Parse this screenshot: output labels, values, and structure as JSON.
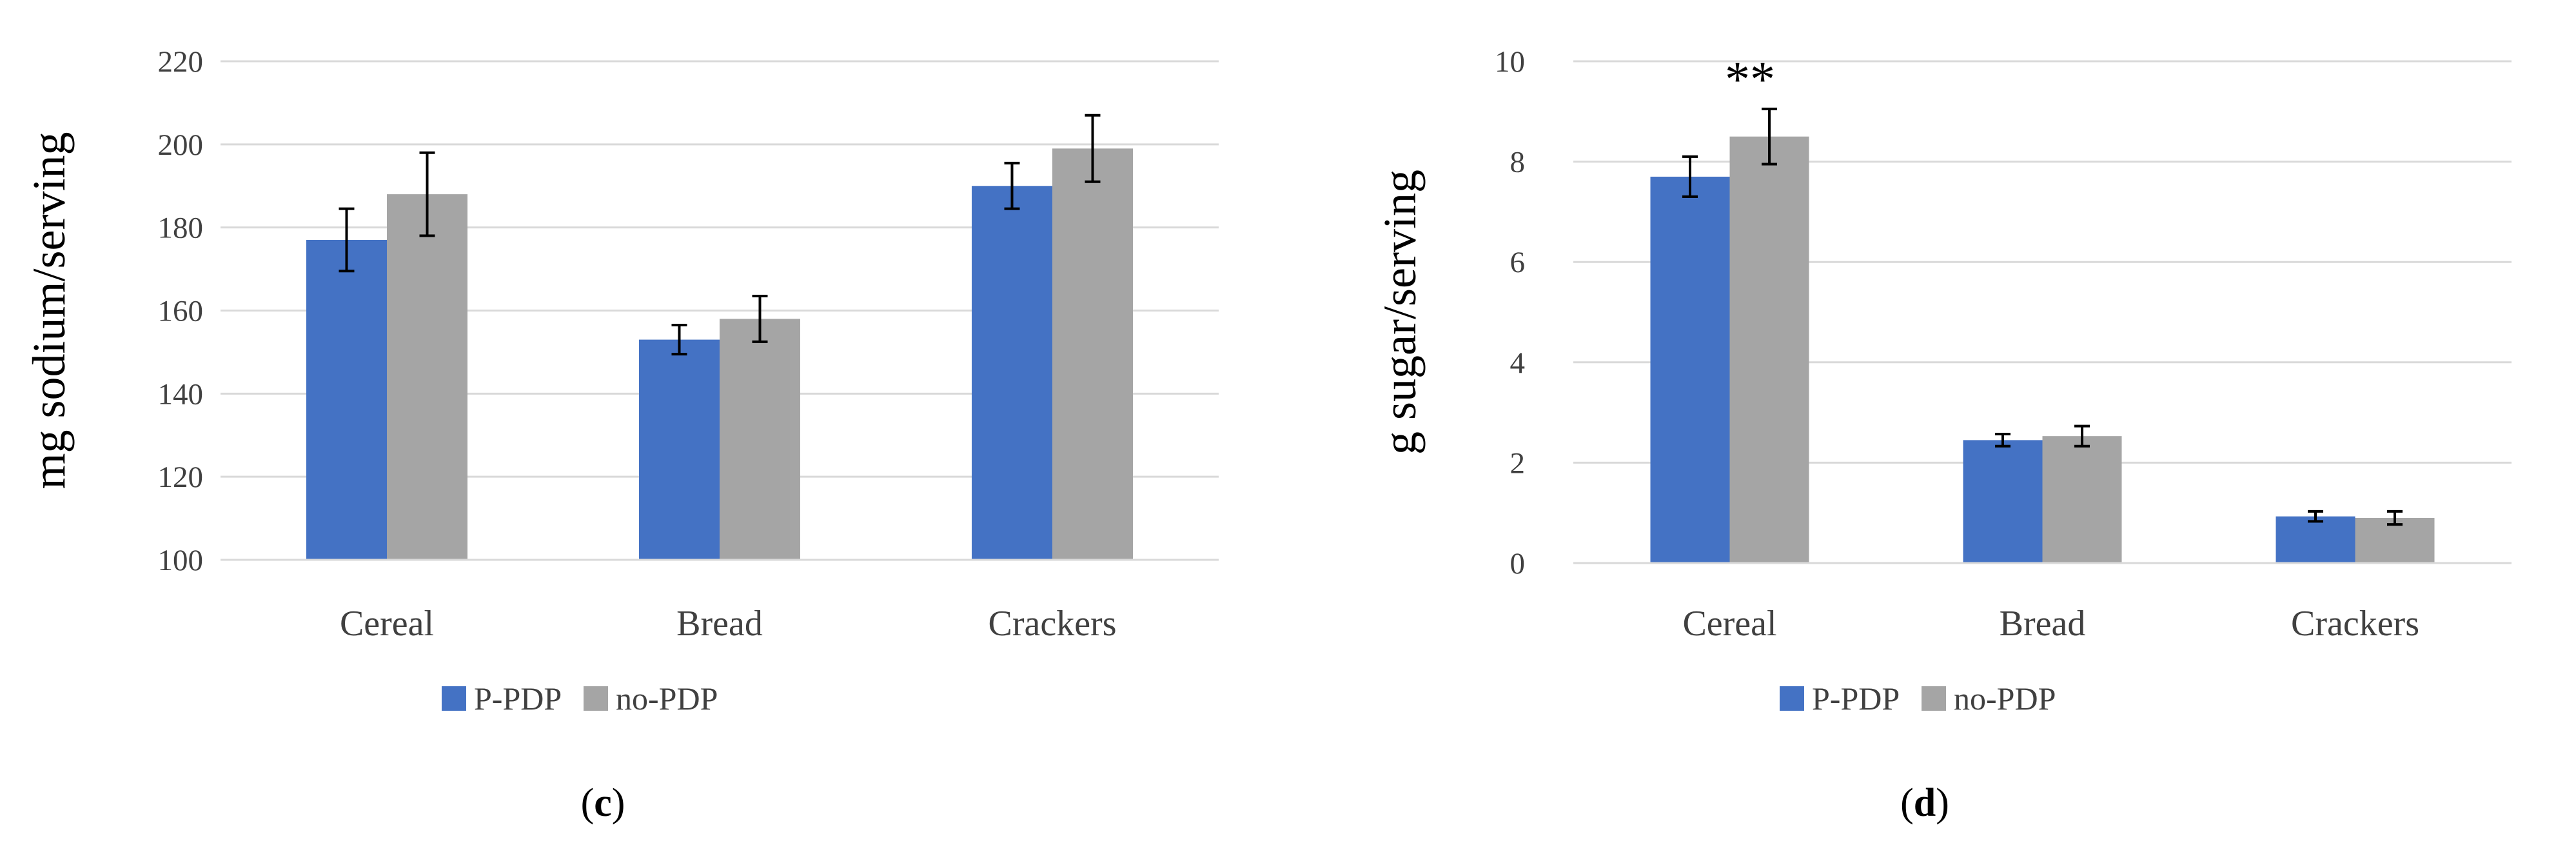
{
  "chart_data": [
    {
      "type": "bar",
      "panel_label_prefix": "(",
      "panel_label_letter": "c",
      "panel_label_suffix": ")",
      "ylabel": "mg sodium/serving",
      "ylim": [
        100,
        220
      ],
      "yticks": [
        "100",
        "120",
        "140",
        "160",
        "180",
        "200",
        "220"
      ],
      "categories": [
        "Cereal",
        "Bread",
        "Crackers"
      ],
      "grid": true,
      "legend_position": "bottom-left",
      "series": [
        {
          "name": "P-PDP",
          "color": "#4472c4",
          "values": [
            177,
            153,
            190
          ],
          "error": [
            7.5,
            3.5,
            5.5
          ]
        },
        {
          "name": "no-PDP",
          "color": "#a5a5a5",
          "values": [
            188,
            158,
            199
          ],
          "error": [
            10,
            5.5,
            8
          ]
        }
      ],
      "annotations": []
    },
    {
      "type": "bar",
      "panel_label_prefix": "(",
      "panel_label_letter": "d",
      "panel_label_suffix": ")",
      "ylabel": "g sugar/serving",
      "ylim": [
        0,
        10
      ],
      "yticks": [
        "0",
        "2",
        "4",
        "6",
        "8",
        "10"
      ],
      "categories": [
        "Cereal",
        "Bread",
        "Crackers"
      ],
      "grid": true,
      "legend_position": "bottom-left",
      "series": [
        {
          "name": "P-PDP",
          "color": "#4472c4",
          "values": [
            7.7,
            2.45,
            0.93
          ],
          "error": [
            0.4,
            0.12,
            0.1
          ]
        },
        {
          "name": "no-PDP",
          "color": "#a5a5a5",
          "values": [
            8.5,
            2.53,
            0.9
          ],
          "error": [
            0.55,
            0.2,
            0.13
          ]
        }
      ],
      "annotations": [
        {
          "text": "**",
          "category": "Cereal",
          "above_series": 1
        }
      ]
    }
  ]
}
